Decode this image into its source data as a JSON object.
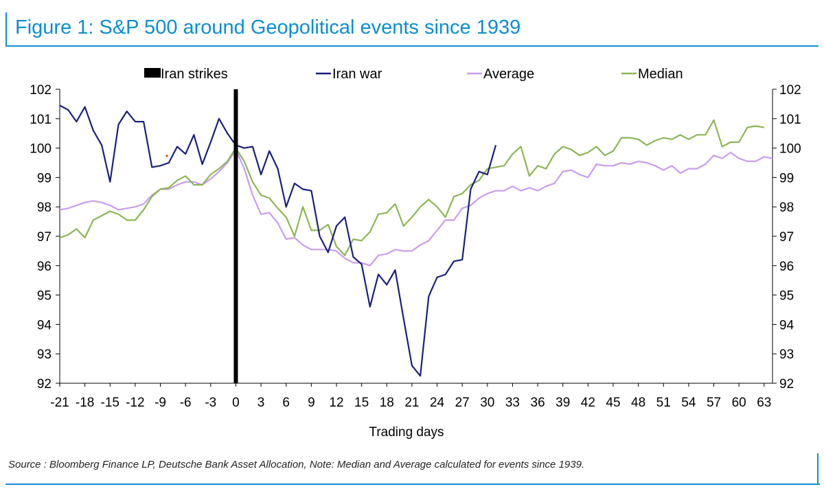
{
  "page": {
    "title": "Figure 1: S&P 500 around Geopolitical events since 1939",
    "source_note": "Source : Bloomberg Finance LP, Deutsche Bank Asset Allocation, Note: Median and Average calculated for events since 1939."
  },
  "colors": {
    "accent": "#0a8fd0",
    "iran_war": "#1a1f7a",
    "average": "#c89cf0",
    "median": "#8db554",
    "iran_strikes": "#000000"
  },
  "chart_data": {
    "type": "line",
    "title": "Figure 1: S&P 500 around Geopolitical events since 1939",
    "xlabel": "Trading days",
    "ylabel": "",
    "xlim": [
      -21,
      64
    ],
    "ylim": [
      92,
      102
    ],
    "x_ticks": [
      -21,
      -18,
      -15,
      -12,
      -9,
      -6,
      -3,
      0,
      3,
      6,
      9,
      12,
      15,
      18,
      21,
      24,
      27,
      30,
      33,
      36,
      39,
      42,
      45,
      48,
      51,
      54,
      57,
      60,
      63
    ],
    "y_ticks": [
      92,
      93,
      94,
      95,
      96,
      97,
      98,
      99,
      100,
      101,
      102
    ],
    "legend": [
      "Iran strikes",
      "Iran war",
      "Average",
      "Median"
    ],
    "legend_position": "top",
    "markers": [
      {
        "name": "Iran strikes",
        "x": 0
      }
    ],
    "series": [
      {
        "name": "Iran war",
        "x_start": -21,
        "values": [
          101.45,
          101.3,
          100.9,
          101.4,
          100.6,
          100.1,
          98.85,
          100.8,
          101.25,
          100.9,
          100.9,
          99.35,
          99.4,
          99.5,
          100.05,
          99.8,
          100.45,
          99.45,
          100.2,
          101.0,
          100.5,
          100.1,
          100.0,
          100.05,
          99.1,
          99.9,
          99.3,
          98.0,
          98.8,
          98.6,
          98.55,
          97.0,
          96.45,
          97.35,
          97.65,
          96.3,
          96.05,
          94.6,
          95.7,
          95.35,
          95.85,
          94.2,
          92.6,
          92.25,
          94.95,
          95.6,
          95.7,
          96.15,
          96.2,
          98.6,
          99.2,
          99.1,
          100.1
        ]
      },
      {
        "name": "Average",
        "x_start": -21,
        "values": [
          97.9,
          97.95,
          98.05,
          98.15,
          98.2,
          98.15,
          98.05,
          97.9,
          97.95,
          98.0,
          98.1,
          98.4,
          98.6,
          98.6,
          98.75,
          98.85,
          98.85,
          98.75,
          98.95,
          99.2,
          99.5,
          99.95,
          99.3,
          98.4,
          97.75,
          97.8,
          97.45,
          96.9,
          96.95,
          96.7,
          96.55,
          96.55,
          96.55,
          96.5,
          96.25,
          96.1,
          96.1,
          96.0,
          96.35,
          96.4,
          96.55,
          96.5,
          96.5,
          96.7,
          96.85,
          97.2,
          97.55,
          97.55,
          97.95,
          98.05,
          98.3,
          98.45,
          98.55,
          98.55,
          98.7,
          98.55,
          98.65,
          98.55,
          98.7,
          98.8,
          99.2,
          99.25,
          99.1,
          99.0,
          99.45,
          99.4,
          99.4,
          99.5,
          99.45,
          99.55,
          99.5,
          99.4,
          99.25,
          99.4,
          99.15,
          99.3,
          99.3,
          99.45,
          99.75,
          99.65,
          99.85,
          99.65,
          99.55,
          99.55,
          99.7,
          99.65
        ]
      },
      {
        "name": "Median",
        "x_start": -21,
        "values": [
          96.95,
          97.05,
          97.25,
          96.95,
          97.55,
          97.7,
          97.85,
          97.75,
          97.55,
          97.55,
          97.9,
          98.35,
          98.6,
          98.65,
          98.9,
          99.05,
          98.75,
          98.75,
          99.1,
          99.3,
          99.55,
          100.0,
          99.55,
          98.85,
          98.4,
          98.3,
          97.95,
          97.65,
          97.0,
          98.0,
          97.2,
          97.2,
          97.4,
          96.65,
          96.35,
          96.9,
          96.85,
          97.15,
          97.75,
          97.8,
          98.1,
          97.35,
          97.65,
          98.0,
          98.25,
          98.0,
          97.65,
          98.35,
          98.45,
          98.75,
          98.9,
          99.3,
          99.35,
          99.4,
          99.8,
          100.05,
          99.05,
          99.4,
          99.3,
          99.8,
          100.05,
          99.95,
          99.75,
          99.85,
          100.05,
          99.75,
          99.9,
          100.35,
          100.35,
          100.3,
          100.1,
          100.25,
          100.35,
          100.3,
          100.45,
          100.3,
          100.45,
          100.45,
          100.95,
          100.05,
          100.2,
          100.2,
          100.7,
          100.75,
          100.7
        ]
      }
    ]
  }
}
